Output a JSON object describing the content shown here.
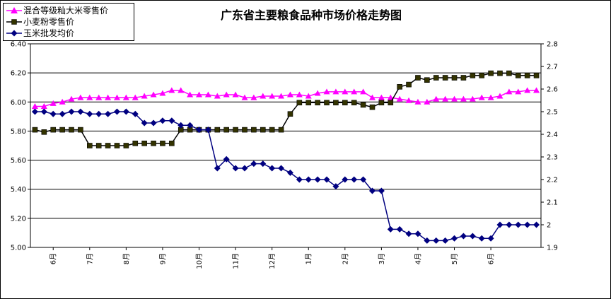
{
  "chart_data": {
    "type": "line",
    "title": "广东省主要粮食品种市场价格走势图",
    "left_axis": {
      "ylim": [
        5.0,
        6.4
      ],
      "ticks": [
        "5.00",
        "5.20",
        "5.40",
        "5.60",
        "5.80",
        "6.00",
        "6.20",
        "6.40"
      ]
    },
    "right_axis": {
      "ylim": [
        1.9,
        2.8
      ],
      "ticks": [
        "1.9",
        "2",
        "2.1",
        "2.2",
        "2.3",
        "2.4",
        "2.5",
        "2.6",
        "2.7",
        "2.8"
      ]
    },
    "x_labels": [
      {
        "label": "6月",
        "index": 2.5
      },
      {
        "label": "7月",
        "index": 6.5
      },
      {
        "label": "8月",
        "index": 10.5
      },
      {
        "label": "9月",
        "index": 14.5
      },
      {
        "label": "10月",
        "index": 18.5
      },
      {
        "label": "11月",
        "index": 22.5
      },
      {
        "label": "12月",
        "index": 26.5
      },
      {
        "label": "1月",
        "index": 30.5
      },
      {
        "label": "2月",
        "index": 34.5
      },
      {
        "label": "3月",
        "index": 38.5
      },
      {
        "label": "4月",
        "index": 42.5
      },
      {
        "label": "5月",
        "index": 46.5
      },
      {
        "label": "6月",
        "index": 50.5
      }
    ],
    "grid": true,
    "legend_position": "top-left",
    "series": [
      {
        "name": "混合等级籼大米零售价",
        "axis": "left",
        "color": "#ff00ff",
        "marker": "triangle",
        "values": [
          5.97,
          5.97,
          5.99,
          6.0,
          6.02,
          6.03,
          6.03,
          6.03,
          6.03,
          6.03,
          6.03,
          6.03,
          6.04,
          6.05,
          6.06,
          6.08,
          6.08,
          6.05,
          6.05,
          6.05,
          6.04,
          6.05,
          6.05,
          6.03,
          6.03,
          6.04,
          6.04,
          6.04,
          6.05,
          6.05,
          6.04,
          6.06,
          6.07,
          6.07,
          6.07,
          6.07,
          6.07,
          6.03,
          6.03,
          6.03,
          6.02,
          6.01,
          6.0,
          6.0,
          6.02,
          6.02,
          6.02,
          6.02,
          6.02,
          6.03,
          6.03,
          6.04,
          6.07,
          6.07,
          6.08,
          6.08
        ]
      },
      {
        "name": "小麦粉零售价",
        "axis": "right",
        "color": "#000000",
        "marker_color": "#333300",
        "marker": "square",
        "values": [
          2.42,
          2.41,
          2.42,
          2.42,
          2.42,
          2.42,
          2.35,
          2.35,
          2.35,
          2.35,
          2.35,
          2.36,
          2.36,
          2.36,
          2.36,
          2.36,
          2.42,
          2.42,
          2.42,
          2.42,
          2.42,
          2.42,
          2.42,
          2.42,
          2.42,
          2.42,
          2.42,
          2.42,
          2.49,
          2.54,
          2.54,
          2.54,
          2.54,
          2.54,
          2.54,
          2.54,
          2.53,
          2.52,
          2.54,
          2.54,
          2.61,
          2.62,
          2.65,
          2.64,
          2.65,
          2.65,
          2.65,
          2.65,
          2.66,
          2.66,
          2.67,
          2.67,
          2.67,
          2.66,
          2.66,
          2.66
        ]
      },
      {
        "name": "玉米批发均价",
        "axis": "right",
        "color": "#000080",
        "marker": "diamond",
        "values": [
          2.5,
          2.5,
          2.49,
          2.49,
          2.5,
          2.5,
          2.49,
          2.49,
          2.49,
          2.5,
          2.5,
          2.49,
          2.45,
          2.45,
          2.46,
          2.46,
          2.44,
          2.44,
          2.42,
          2.42,
          2.25,
          2.29,
          2.25,
          2.25,
          2.27,
          2.27,
          2.25,
          2.25,
          2.23,
          2.2,
          2.2,
          2.2,
          2.2,
          2.17,
          2.2,
          2.2,
          2.2,
          2.15,
          2.15,
          1.98,
          1.98,
          1.96,
          1.96,
          1.93,
          1.93,
          1.93,
          1.94,
          1.95,
          1.95,
          1.94,
          1.94,
          2.0,
          2.0,
          2.0,
          2.0,
          2.0
        ]
      }
    ]
  }
}
